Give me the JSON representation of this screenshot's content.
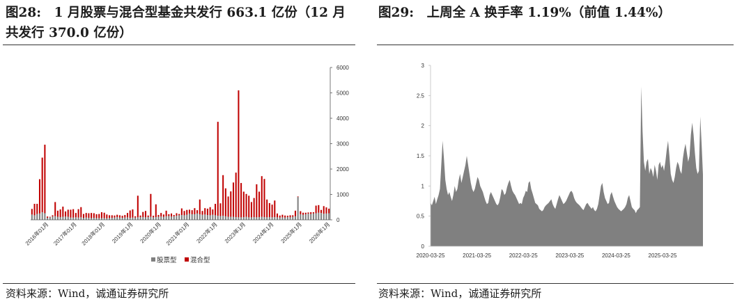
{
  "left": {
    "title": "图28:　1 月股票与混合型基金共发行 663.1 亿份（12 月共发行 370.0 亿份）",
    "source": "资料来源：Wind，诚通证券研究所",
    "colors": {
      "stock": "#7f7f7f",
      "mixed": "#c00000",
      "axis": "#595959"
    }
  },
  "right": {
    "title": "图29:　上周全 A 换手率 1.19%（前值 1.44%）",
    "source": "资料来源：Wind，诚通证券研究所",
    "colors": {
      "area": "#808080",
      "axis": "#bfbfbf"
    }
  },
  "chart_data": [
    {
      "type": "bar",
      "stacked": true,
      "x_tick_labels": [
        "2016年01月",
        "2017年01月",
        "2018年01月",
        "2019年1月",
        "2020年1月",
        "2021年01月",
        "2022年1月",
        "2023年1月",
        "2024年1月",
        "2025年1月",
        "2026年1月"
      ],
      "series": [
        {
          "name": "股票型",
          "values": [
            210,
            180,
            230,
            250,
            300,
            260,
            80,
            100,
            130,
            150,
            120,
            110,
            120,
            130,
            120,
            90,
            90,
            100,
            90,
            100,
            80,
            90,
            80,
            70,
            80,
            70,
            70,
            70,
            70,
            60,
            80,
            80,
            90,
            110,
            90,
            80,
            90,
            100,
            80,
            90,
            90,
            100,
            110,
            110,
            100,
            110,
            120,
            100,
            110,
            120,
            130,
            120,
            140,
            150,
            130,
            140,
            160,
            180,
            190,
            180,
            200,
            250,
            220,
            220,
            250,
            220,
            200,
            210,
            190,
            180,
            200,
            180,
            160,
            150,
            160,
            140,
            120,
            120,
            120,
            110,
            100,
            100,
            110,
            120,
            100,
            100,
            110,
            100,
            110,
            120,
            110,
            100,
            110,
            100,
            110,
            100,
            90,
            100,
            90,
            110,
            100,
            120,
            140,
            900,
            220,
            200,
            220,
            240,
            230,
            250,
            260,
            280,
            270,
            240,
            250,
            260
          ]
        },
        {
          "name": "混合型",
          "values": [
            220,
            450,
            400,
            1350,
            2150,
            2700,
            50,
            20,
            50,
            550,
            240,
            300,
            400,
            200,
            280,
            310,
            330,
            170,
            330,
            400,
            150,
            180,
            180,
            200,
            180,
            150,
            160,
            230,
            210,
            150,
            100,
            100,
            80,
            90,
            90,
            80,
            100,
            170,
            290,
            320,
            50,
            850,
            60,
            200,
            250,
            60,
            900,
            60,
            500,
            70,
            140,
            90,
            220,
            70,
            120,
            50,
            100,
            50,
            260,
            170,
            190,
            150,
            160,
            240,
            130,
            580,
            150,
            250,
            250,
            320,
            210,
            450,
            3700,
            500,
            1600,
            1100,
            800,
            1000,
            1350,
            1750,
            5000,
            1350,
            1000,
            900,
            850,
            600,
            750,
            1300,
            1000,
            1600,
            1500,
            700,
            550,
            500,
            650,
            150,
            80,
            100,
            80,
            50,
            80,
            60,
            220,
            20,
            120,
            80,
            60,
            50,
            70,
            50,
            300,
            300,
            120,
            300,
            240,
            180,
            280,
            380,
            300
          ]
        }
      ],
      "ylim": [
        0,
        6000
      ],
      "y_ticks": [
        0,
        1000,
        2000,
        3000,
        4000,
        5000,
        6000
      ],
      "y_axis_side": "right",
      "legend": "bottom"
    },
    {
      "type": "area",
      "x_tick_labels": [
        "2020-03-25",
        "2021-03-25",
        "2022-03-25",
        "2023-03-25",
        "2024-03-25",
        "2025-03-25"
      ],
      "values": [
        0.72,
        0.68,
        0.75,
        0.82,
        0.7,
        0.78,
        0.85,
        0.95,
        1.35,
        1.75,
        1.45,
        1.1,
        0.95,
        0.85,
        0.9,
        0.82,
        0.75,
        0.85,
        1.0,
        0.9,
        0.95,
        1.1,
        1.2,
        1.05,
        1.15,
        1.25,
        1.35,
        1.5,
        1.35,
        1.2,
        1.05,
        0.95,
        0.9,
        0.95,
        1.05,
        1.15,
        1.1,
        1.0,
        0.95,
        0.9,
        0.82,
        0.75,
        0.7,
        0.72,
        0.85,
        0.9,
        0.85,
        0.8,
        0.75,
        0.7,
        0.68,
        0.72,
        0.82,
        0.95,
        0.92,
        0.85,
        0.88,
        0.98,
        1.05,
        1.1,
        1.0,
        0.92,
        0.88,
        0.85,
        0.8,
        0.75,
        0.7,
        0.72,
        0.7,
        0.8,
        0.85,
        0.92,
        0.9,
        1.05,
        1.08,
        0.95,
        0.88,
        0.8,
        0.72,
        0.7,
        0.68,
        0.62,
        0.6,
        0.58,
        0.6,
        0.65,
        0.68,
        0.7,
        0.72,
        0.75,
        0.78,
        0.7,
        0.65,
        0.62,
        0.7,
        0.78,
        0.85,
        0.8,
        0.75,
        0.7,
        0.72,
        0.75,
        0.8,
        0.85,
        0.9,
        0.92,
        0.88,
        0.8,
        0.75,
        0.72,
        0.7,
        0.68,
        0.65,
        0.62,
        0.6,
        0.65,
        0.7,
        0.72,
        0.68,
        0.65,
        0.62,
        0.65,
        0.6,
        0.58,
        0.62,
        0.7,
        0.85,
        1.0,
        1.05,
        0.9,
        0.8,
        0.75,
        0.7,
        0.72,
        0.85,
        0.9,
        0.82,
        0.75,
        0.7,
        0.65,
        0.62,
        0.6,
        0.58,
        0.6,
        0.62,
        0.65,
        0.7,
        0.8,
        0.85,
        0.75,
        0.65,
        0.62,
        0.6,
        0.55,
        0.6,
        0.62,
        0.65,
        2.65,
        1.9,
        1.4,
        1.25,
        1.4,
        1.45,
        1.2,
        1.3,
        1.25,
        1.15,
        1.35,
        1.25,
        1.1,
        1.35,
        1.4,
        1.3,
        1.35,
        1.25,
        1.4,
        1.6,
        1.75,
        1.5,
        1.2,
        1.1,
        1.05,
        1.15,
        1.3,
        1.4,
        1.35,
        1.25,
        1.2,
        1.45,
        1.6,
        1.7,
        1.55,
        1.4,
        1.5,
        1.85,
        2.05,
        1.85,
        1.55,
        1.3,
        1.2,
        1.25,
        2.15,
        1.7,
        1.19
      ],
      "ylim": [
        0,
        3
      ],
      "y_ticks": [
        0,
        0.5,
        1,
        1.5,
        2,
        2.5,
        3
      ],
      "y_axis_side": "left"
    }
  ]
}
